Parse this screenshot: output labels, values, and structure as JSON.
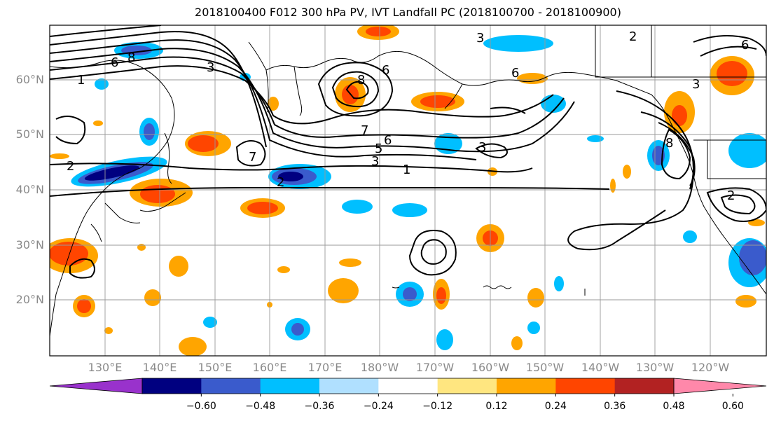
{
  "title": "2018100400 F012 300 hPa PV, IVT Landfall PC (2018100700 - 2018100900)",
  "lat_labels": [
    "60°N",
    "50°N",
    "40°N",
    "30°N",
    "20°N"
  ],
  "lon_labels": [
    "130°E",
    "140°E",
    "150°E",
    "160°E",
    "170°E",
    "180°W",
    "170°W",
    "160°W",
    "150°W",
    "140°W",
    "130°W",
    "120°W"
  ],
  "contour_labels": [
    "1",
    "2",
    "3",
    "5",
    "6",
    "7",
    "8"
  ],
  "colorbar": {
    "tick_labels": [
      "−0.60",
      "−0.48",
      "−0.36",
      "−0.24",
      "−0.12",
      "0.12",
      "0.24",
      "0.36",
      "0.48",
      "0.60"
    ],
    "colors": [
      "#9932cc",
      "#000080",
      "#3a5bcc",
      "#00bfff",
      "#b0e0ff",
      "#ffffff",
      "#ffe680",
      "#ffa500",
      "#ff4500",
      "#b22222",
      "#ff88aa"
    ]
  }
}
